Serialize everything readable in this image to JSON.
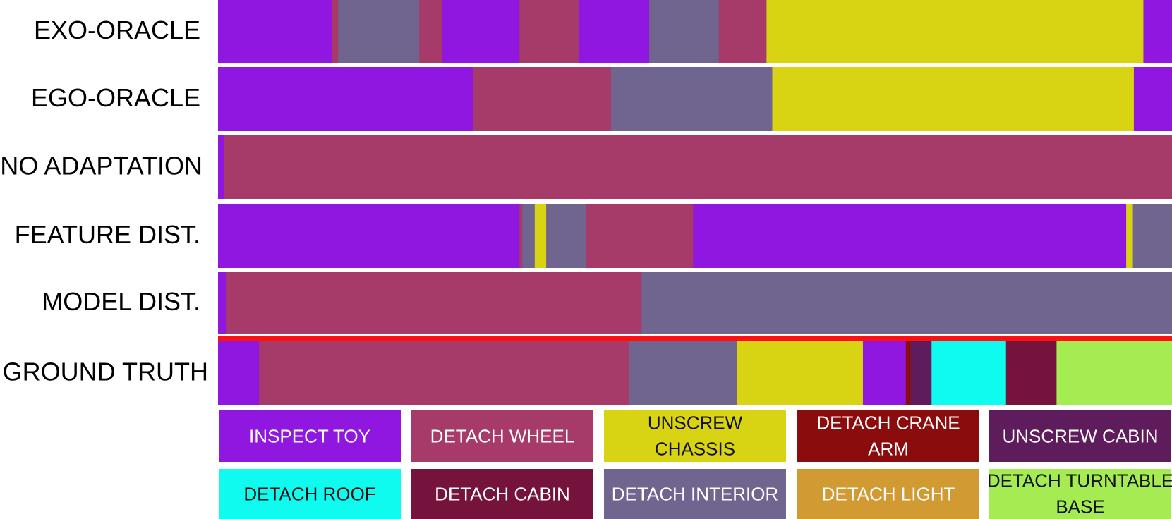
{
  "chart_data": {
    "type": "segmentation_timeline",
    "x_range": [
      0,
      100
    ],
    "rows": [
      {
        "label": "EXO-ORACLE",
        "segments": [
          {
            "action": "INSPECT TOY",
            "start": 0,
            "end": 11.9
          },
          {
            "action": "DETACH WHEEL",
            "start": 11.9,
            "end": 12.6
          },
          {
            "action": "DETACH INTERIOR",
            "start": 12.6,
            "end": 21.1
          },
          {
            "action": "DETACH WHEEL",
            "start": 21.1,
            "end": 23.5
          },
          {
            "action": "INSPECT TOY",
            "start": 23.5,
            "end": 31.6
          },
          {
            "action": "DETACH WHEEL",
            "start": 31.6,
            "end": 37.8
          },
          {
            "action": "INSPECT TOY",
            "start": 37.8,
            "end": 45.2
          },
          {
            "action": "DETACH INTERIOR",
            "start": 45.2,
            "end": 52.5
          },
          {
            "action": "DETACH WHEEL",
            "start": 52.5,
            "end": 57.5
          },
          {
            "action": "UNSCREW CHASSIS",
            "start": 57.5,
            "end": 97.0
          },
          {
            "action": "INSPECT TOY",
            "start": 97.0,
            "end": 100
          }
        ]
      },
      {
        "label": "EGO-ORACLE",
        "segments": [
          {
            "action": "INSPECT TOY",
            "start": 0,
            "end": 26.7
          },
          {
            "action": "DETACH WHEEL",
            "start": 26.7,
            "end": 41.2
          },
          {
            "action": "DETACH INTERIOR",
            "start": 41.2,
            "end": 58.1
          },
          {
            "action": "UNSCREW CHASSIS",
            "start": 58.1,
            "end": 96.0
          },
          {
            "action": "INSPECT TOY",
            "start": 96.0,
            "end": 100
          }
        ]
      },
      {
        "label": "NO ADAPTATION",
        "segments": [
          {
            "action": "INSPECT TOY",
            "start": 0,
            "end": 0.6
          },
          {
            "action": "DETACH WHEEL",
            "start": 0.6,
            "end": 100
          }
        ]
      },
      {
        "label": "FEATURE DIST.",
        "segments": [
          {
            "action": "INSPECT TOY",
            "start": 0,
            "end": 31.6
          },
          {
            "action": "DETACH WHEEL",
            "start": 31.6,
            "end": 31.9
          },
          {
            "action": "DETACH INTERIOR",
            "start": 31.9,
            "end": 33.2
          },
          {
            "action": "UNSCREW CHASSIS",
            "start": 33.2,
            "end": 34.4
          },
          {
            "action": "DETACH INTERIOR",
            "start": 34.4,
            "end": 38.6
          },
          {
            "action": "DETACH WHEEL",
            "start": 38.6,
            "end": 49.8
          },
          {
            "action": "INSPECT TOY",
            "start": 49.8,
            "end": 95.2
          },
          {
            "action": "UNSCREW CHASSIS",
            "start": 95.2,
            "end": 95.9
          },
          {
            "action": "DETACH INTERIOR",
            "start": 95.9,
            "end": 100
          }
        ]
      },
      {
        "label": "MODEL DIST.",
        "segments": [
          {
            "action": "INSPECT TOY",
            "start": 0,
            "end": 0.9
          },
          {
            "action": "DETACH WHEEL",
            "start": 0.9,
            "end": 44.4
          },
          {
            "action": "DETACH INTERIOR",
            "start": 44.4,
            "end": 100
          }
        ]
      },
      {
        "label": "GROUND TRUTH",
        "segments": [
          {
            "action": "INSPECT TOY",
            "start": 0,
            "end": 4.3
          },
          {
            "action": "DETACH WHEEL",
            "start": 4.3,
            "end": 43.1
          },
          {
            "action": "DETACH INTERIOR",
            "start": 43.1,
            "end": 54.4
          },
          {
            "action": "UNSCREW CHASSIS",
            "start": 54.4,
            "end": 67.6
          },
          {
            "action": "INSPECT TOY",
            "start": 67.6,
            "end": 72.1
          },
          {
            "action": "DETACH CRANE ARM",
            "start": 72.1,
            "end": 72.6
          },
          {
            "action": "UNSCREW CABIN",
            "start": 72.6,
            "end": 74.8
          },
          {
            "action": "DETACH ROOF",
            "start": 74.8,
            "end": 82.6
          },
          {
            "action": "DETACH CABIN",
            "start": 82.6,
            "end": 87.9
          },
          {
            "action": "DETACH TURNTABLE BASE",
            "start": 87.9,
            "end": 100
          }
        ]
      }
    ],
    "legend": [
      {
        "label": "INSPECT TOY",
        "color": "#9017e0",
        "text_color": "#ffffff"
      },
      {
        "label": "DETACH WHEEL",
        "color": "#a63a68",
        "text_color": "#ffffff"
      },
      {
        "label": "UNSCREW CHASSIS",
        "color": "#d9d413",
        "text_color": "#111111"
      },
      {
        "label": "DETACH CRANE ARM",
        "color": "#8a0c0c",
        "text_color": "#ffffff"
      },
      {
        "label": "UNSCREW CABIN",
        "color": "#5f1c5c",
        "text_color": "#ffffff"
      },
      {
        "label": "DETACH ROOF",
        "color": "#0ffbef",
        "text_color": "#111111"
      },
      {
        "label": "DETACH CABIN",
        "color": "#76133c",
        "text_color": "#ffffff"
      },
      {
        "label": "DETACH INTERIOR",
        "color": "#70658f",
        "text_color": "#ffffff"
      },
      {
        "label": "DETACH LIGHT",
        "color": "#d19a32",
        "text_color": "#ffffff"
      },
      {
        "label": "DETACH TURNTABLE BASE",
        "color": "#a5ec53",
        "text_color": "#111111"
      }
    ],
    "separator_color": "#ff0f0f"
  }
}
